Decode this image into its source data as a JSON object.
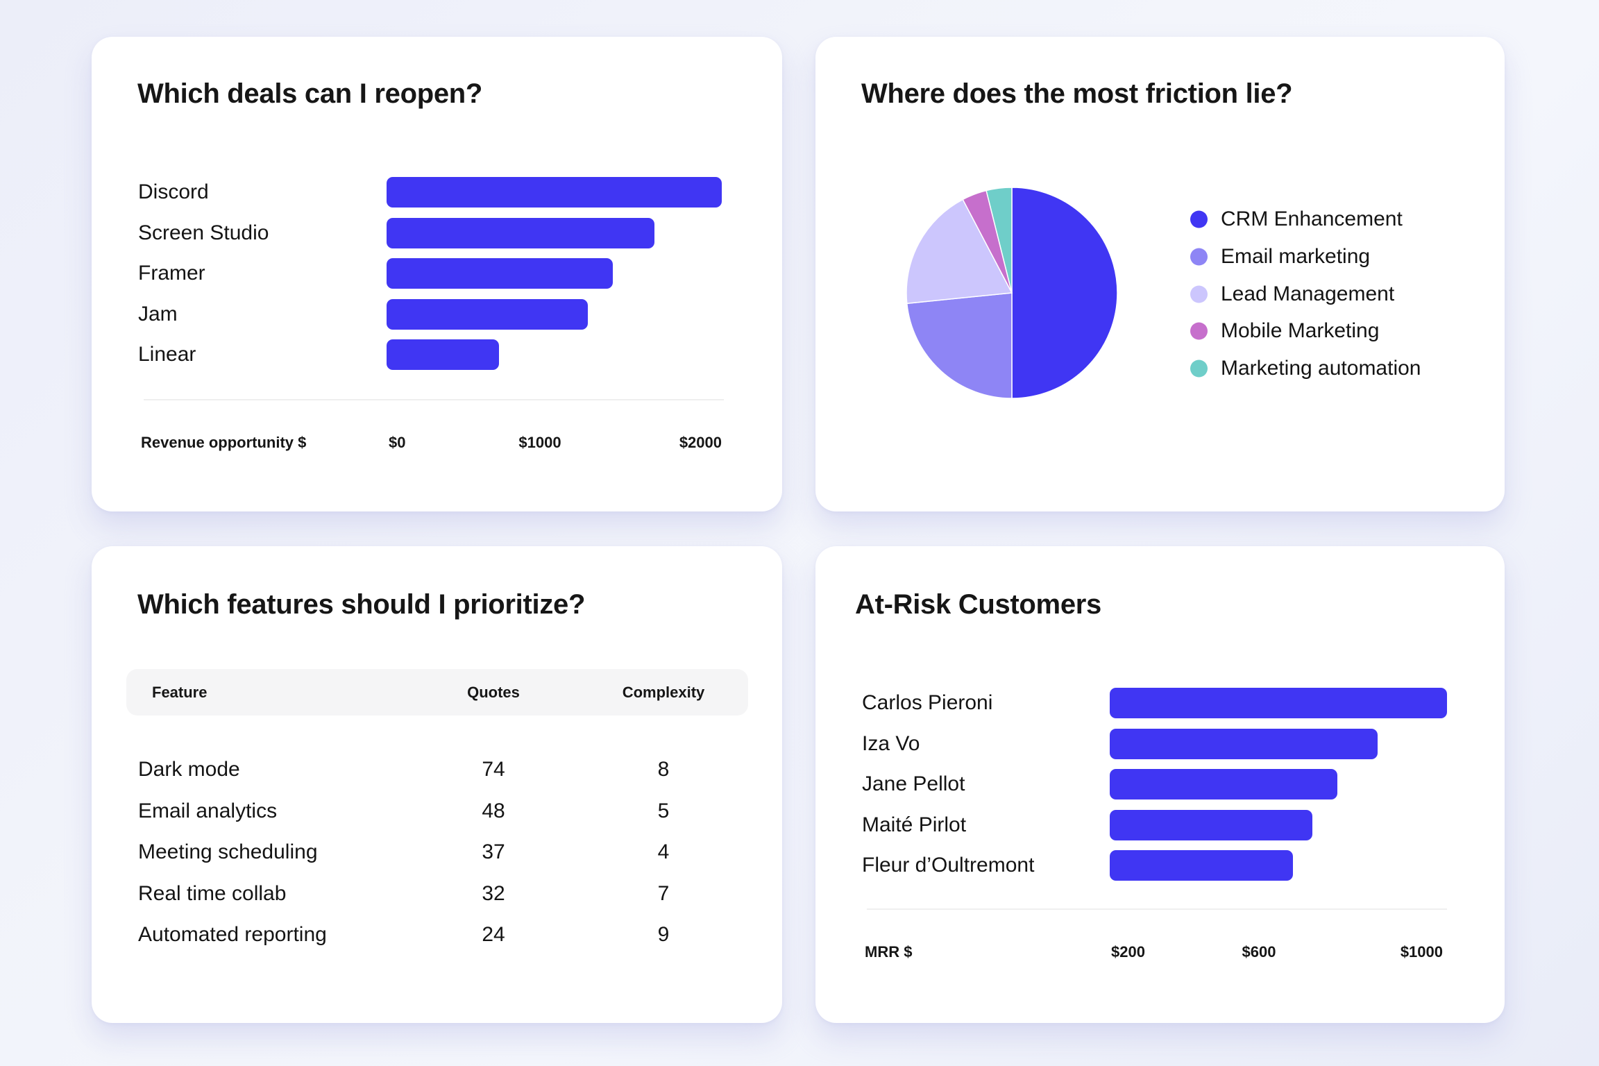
{
  "colors": {
    "bar": "#4036f3",
    "pie": [
      "#4036f3",
      "#8e85f5",
      "#ccc6fd",
      "#c66fcc",
      "#6fcec9"
    ]
  },
  "deals": {
    "title": "Which deals can I reopen?",
    "axis_title": "Revenue opportunity $",
    "ticks": [
      "$0",
      "$1000",
      "$2000"
    ]
  },
  "friction": {
    "title": "Where does the most friction lie?"
  },
  "features": {
    "title": "Which features should I prioritize?",
    "columns": [
      "Feature",
      "Quotes",
      "Complexity"
    ],
    "rows": [
      {
        "feature": "Dark mode",
        "quotes": "74",
        "complexity": "8"
      },
      {
        "feature": "Email analytics",
        "quotes": "48",
        "complexity": "5"
      },
      {
        "feature": "Meeting scheduling",
        "quotes": "37",
        "complexity": "4"
      },
      {
        "feature": "Real time collab",
        "quotes": "32",
        "complexity": "7"
      },
      {
        "feature": "Automated reporting",
        "quotes": "24",
        "complexity": "9"
      }
    ]
  },
  "risk": {
    "title": "At-Risk Customers",
    "axis_title": "MRR $",
    "ticks": [
      "$200",
      "$600",
      "$1000"
    ]
  },
  "chart_data": [
    {
      "type": "bar",
      "orientation": "horizontal",
      "title": "Which deals can I reopen?",
      "categories": [
        "Discord",
        "Screen Studio",
        "Framer",
        "Jam",
        "Linear"
      ],
      "values": [
        2000,
        1600,
        1350,
        1200,
        670
      ],
      "xlabel": "Revenue opportunity $",
      "xticks": [
        "$0",
        "$1000",
        "$2000"
      ],
      "xlim": [
        0,
        2000
      ],
      "grid": false
    },
    {
      "type": "pie",
      "title": "Where does the most friction lie?",
      "categories": [
        "CRM Enhancement",
        "Email marketing",
        "Lead Management",
        "Mobile Marketing",
        "Marketing automation"
      ],
      "values": [
        50,
        23.4,
        18.9,
        3.8,
        3.9
      ],
      "legend": "right"
    },
    {
      "type": "table",
      "title": "Which features should I prioritize?",
      "columns": [
        "Feature",
        "Quotes",
        "Complexity"
      ],
      "rows": [
        [
          "Dark mode",
          74,
          8
        ],
        [
          "Email analytics",
          48,
          5
        ],
        [
          "Meeting scheduling",
          37,
          4
        ],
        [
          "Real time collab",
          32,
          7
        ],
        [
          "Automated reporting",
          24,
          9
        ]
      ]
    },
    {
      "type": "bar",
      "orientation": "horizontal",
      "title": "At-Risk Customers",
      "categories": [
        "Carlos Pieroni",
        "Iza Vo",
        "Jane Pellot",
        "Maité Pirlot",
        "Fleur d’Oultremont"
      ],
      "values": [
        1000,
        835,
        740,
        680,
        635
      ],
      "xlabel": "MRR $",
      "xticks": [
        "$200",
        "$600",
        "$1000"
      ],
      "xlim": [
        200,
        1000
      ],
      "grid": false
    }
  ]
}
